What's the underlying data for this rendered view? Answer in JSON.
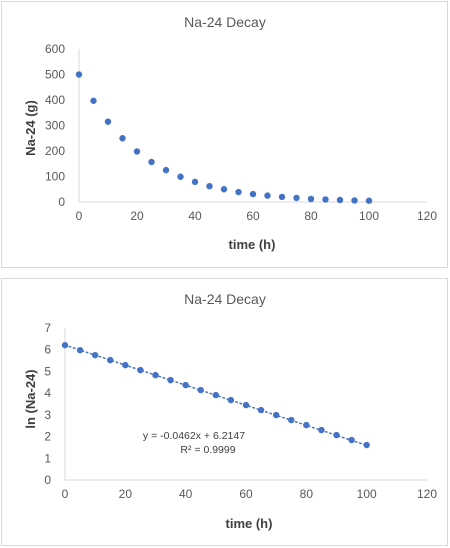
{
  "chart_data": [
    {
      "type": "scatter",
      "title": "Na-24 Decay",
      "xlabel": "time (h)",
      "ylabel": "Na-24 (g)",
      "xlim": [
        0,
        120
      ],
      "ylim": [
        0,
        600
      ],
      "xticks": [
        "0",
        "20",
        "40",
        "60",
        "80",
        "100",
        "120"
      ],
      "yticks": [
        "0",
        "100",
        "200",
        "300",
        "400",
        "500",
        "600"
      ],
      "grid": false,
      "color": "#4472c4",
      "x": [
        0,
        5,
        10,
        15,
        20,
        25,
        30,
        35,
        40,
        45,
        50,
        55,
        60,
        65,
        70,
        75,
        80,
        85,
        90,
        95,
        100
      ],
      "y": [
        500,
        397,
        315,
        250,
        198,
        157,
        125,
        99,
        79,
        62,
        50,
        39,
        31,
        25,
        20,
        16,
        12,
        10,
        8,
        6,
        5
      ]
    },
    {
      "type": "scatter",
      "title": "Na-24 Decay",
      "xlabel": "time (h)",
      "ylabel": "ln (Na-24)",
      "xlim": [
        0,
        120
      ],
      "ylim": [
        0,
        7
      ],
      "xticks": [
        "0",
        "20",
        "40",
        "60",
        "80",
        "100",
        "120"
      ],
      "yticks": [
        "0",
        "1",
        "2",
        "3",
        "4",
        "5",
        "6",
        "7"
      ],
      "grid": false,
      "color": "#4472c4",
      "x": [
        0,
        5,
        10,
        15,
        20,
        25,
        30,
        35,
        40,
        45,
        50,
        55,
        60,
        65,
        70,
        75,
        80,
        85,
        90,
        95,
        100
      ],
      "y": [
        6.21,
        5.98,
        5.75,
        5.52,
        5.29,
        5.06,
        4.83,
        4.6,
        4.37,
        4.14,
        3.91,
        3.68,
        3.45,
        3.22,
        2.99,
        2.76,
        2.53,
        2.3,
        2.07,
        1.84,
        1.61
      ],
      "trendline": {
        "type": "linear",
        "style": "dotted",
        "slope": -0.0462,
        "intercept": 6.2147,
        "equation_label": "y = -0.0462x + 6.2147",
        "r2_label": "R² = 0.9999"
      }
    }
  ]
}
